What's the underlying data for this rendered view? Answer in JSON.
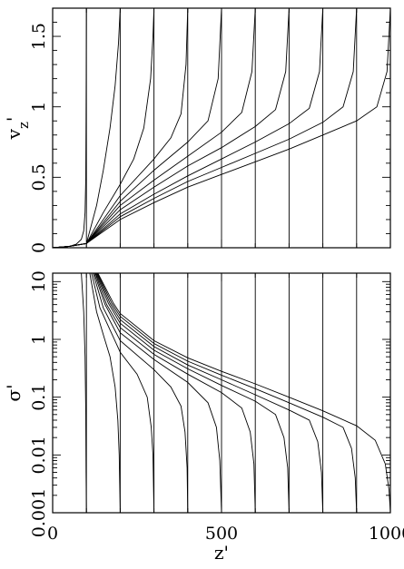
{
  "chart_data": [
    {
      "type": "line",
      "panel": "top",
      "ylabel": "v_z'",
      "xlim": [
        0,
        1000
      ],
      "ylim": [
        0,
        1.7
      ],
      "yticks": [
        0,
        0.5,
        1,
        1.5
      ],
      "ytick_labels": [
        "0",
        "0.5",
        "1",
        "1.5"
      ],
      "xticks": [
        0,
        500,
        1000
      ],
      "xtick_labels": [],
      "vertical_lines_x": [
        100,
        200,
        300,
        400,
        500,
        600,
        700,
        800,
        900,
        1000
      ],
      "series": [
        {
          "front": 100,
          "points": [
            [
              0,
              0
            ],
            [
              20,
              0.003
            ],
            [
              50,
              0.01
            ],
            [
              70,
              0.025
            ],
            [
              85,
              0.06
            ],
            [
              92,
              0.12
            ],
            [
              96,
              0.25
            ],
            [
              98,
              0.5
            ],
            [
              99,
              0.9
            ],
            [
              100,
              1.7
            ]
          ]
        },
        {
          "front": 200,
          "points": [
            [
              0,
              0
            ],
            [
              50,
              0.01
            ],
            [
              100,
              0.03
            ],
            [
              130,
              0.3
            ],
            [
              150,
              0.55
            ],
            [
              170,
              0.85
            ],
            [
              185,
              1.15
            ],
            [
              195,
              1.45
            ],
            [
              200,
              1.7
            ]
          ]
        },
        {
          "front": 300,
          "points": [
            [
              0,
              0
            ],
            [
              50,
              0.01
            ],
            [
              100,
              0.03
            ],
            [
              150,
              0.25
            ],
            [
              200,
              0.45
            ],
            [
              240,
              0.63
            ],
            [
              270,
              0.85
            ],
            [
              290,
              1.2
            ],
            [
              297,
              1.5
            ],
            [
              300,
              1.7
            ]
          ]
        },
        {
          "front": 400,
          "points": [
            [
              0,
              0
            ],
            [
              50,
              0.01
            ],
            [
              100,
              0.03
            ],
            [
              200,
              0.37
            ],
            [
              300,
              0.63
            ],
            [
              350,
              0.78
            ],
            [
              380,
              0.95
            ],
            [
              395,
              1.3
            ],
            [
              400,
              1.7
            ]
          ]
        },
        {
          "front": 500,
          "points": [
            [
              0,
              0
            ],
            [
              50,
              0.01
            ],
            [
              100,
              0.03
            ],
            [
              200,
              0.33
            ],
            [
              300,
              0.55
            ],
            [
              400,
              0.75
            ],
            [
              460,
              0.9
            ],
            [
              490,
              1.2
            ],
            [
              500,
              1.7
            ]
          ]
        },
        {
          "front": 600,
          "points": [
            [
              0,
              0
            ],
            [
              50,
              0.01
            ],
            [
              100,
              0.03
            ],
            [
              200,
              0.3
            ],
            [
              300,
              0.48
            ],
            [
              400,
              0.65
            ],
            [
              500,
              0.82
            ],
            [
              560,
              0.96
            ],
            [
              590,
              1.25
            ],
            [
              600,
              1.7
            ]
          ]
        },
        {
          "front": 700,
          "points": [
            [
              0,
              0
            ],
            [
              50,
              0.01
            ],
            [
              100,
              0.03
            ],
            [
              200,
              0.27
            ],
            [
              300,
              0.43
            ],
            [
              400,
              0.58
            ],
            [
              500,
              0.71
            ],
            [
              600,
              0.86
            ],
            [
              660,
              0.98
            ],
            [
              690,
              1.25
            ],
            [
              700,
              1.7
            ]
          ]
        },
        {
          "front": 800,
          "points": [
            [
              0,
              0
            ],
            [
              50,
              0.01
            ],
            [
              100,
              0.03
            ],
            [
              200,
              0.24
            ],
            [
              300,
              0.38
            ],
            [
              400,
              0.51
            ],
            [
              500,
              0.63
            ],
            [
              600,
              0.75
            ],
            [
              700,
              0.88
            ],
            [
              760,
              0.99
            ],
            [
              790,
              1.25
            ],
            [
              800,
              1.7
            ]
          ]
        },
        {
          "front": 900,
          "points": [
            [
              0,
              0
            ],
            [
              50,
              0.01
            ],
            [
              100,
              0.03
            ],
            [
              200,
              0.22
            ],
            [
              300,
              0.35
            ],
            [
              400,
              0.47
            ],
            [
              500,
              0.57
            ],
            [
              600,
              0.67
            ],
            [
              700,
              0.77
            ],
            [
              800,
              0.89
            ],
            [
              860,
              1.0
            ],
            [
              890,
              1.25
            ],
            [
              900,
              1.7
            ]
          ]
        },
        {
          "front": 1000,
          "points": [
            [
              0,
              0
            ],
            [
              50,
              0.01
            ],
            [
              100,
              0.03
            ],
            [
              200,
              0.2
            ],
            [
              300,
              0.32
            ],
            [
              400,
              0.43
            ],
            [
              500,
              0.52
            ],
            [
              600,
              0.61
            ],
            [
              700,
              0.7
            ],
            [
              800,
              0.8
            ],
            [
              900,
              0.9
            ],
            [
              960,
              1.0
            ],
            [
              990,
              1.25
            ],
            [
              1000,
              1.7
            ]
          ]
        }
      ]
    },
    {
      "type": "line",
      "panel": "bottom",
      "xlabel": "z'",
      "ylabel": "σ'",
      "xlim": [
        0,
        1000
      ],
      "ylim": [
        0.001,
        14
      ],
      "yscale": "log",
      "yticks": [
        0.001,
        0.01,
        0.1,
        1,
        10
      ],
      "ytick_labels": [
        "0.001",
        "0.01",
        "0.1",
        "1",
        "10"
      ],
      "xticks": [
        0,
        500,
        1000
      ],
      "xtick_labels": [
        "0",
        "500",
        "1000"
      ],
      "vertical_lines_x": [
        100,
        200,
        300,
        400,
        500,
        600,
        700,
        800,
        900,
        1000
      ],
      "series": [
        {
          "front": 100,
          "points": [
            [
              85,
              14
            ],
            [
              92,
              3
            ],
            [
              96,
              0.5
            ],
            [
              98,
              0.05
            ],
            [
              99,
              0.005
            ],
            [
              100,
              0.001
            ]
          ]
        },
        {
          "front": 200,
          "points": [
            [
              110,
              14
            ],
            [
              130,
              3
            ],
            [
              150,
              1.2
            ],
            [
              170,
              0.5
            ],
            [
              185,
              0.15
            ],
            [
              193,
              0.04
            ],
            [
              197,
              0.01
            ],
            [
              200,
              0.001
            ]
          ]
        },
        {
          "front": 300,
          "points": [
            [
              115,
              14
            ],
            [
              140,
              3.5
            ],
            [
              200,
              0.6
            ],
            [
              250,
              0.25
            ],
            [
              280,
              0.1
            ],
            [
              292,
              0.03
            ],
            [
              297,
              0.01
            ],
            [
              300,
              0.001
            ]
          ]
        },
        {
          "front": 400,
          "points": [
            [
              120,
              14
            ],
            [
              150,
              3.5
            ],
            [
              200,
              0.95
            ],
            [
              300,
              0.3
            ],
            [
              350,
              0.15
            ],
            [
              380,
              0.07
            ],
            [
              392,
              0.025
            ],
            [
              398,
              0.006
            ],
            [
              400,
              0.001
            ]
          ]
        },
        {
          "front": 500,
          "points": [
            [
              123,
              14
            ],
            [
              155,
              4
            ],
            [
              200,
              1.3
            ],
            [
              300,
              0.45
            ],
            [
              400,
              0.18
            ],
            [
              460,
              0.08
            ],
            [
              485,
              0.03
            ],
            [
              495,
              0.008
            ],
            [
              500,
              0.001
            ]
          ]
        },
        {
          "front": 600,
          "points": [
            [
              126,
              14
            ],
            [
              160,
              4
            ],
            [
              200,
              1.6
            ],
            [
              300,
              0.55
            ],
            [
              400,
              0.25
            ],
            [
              500,
              0.12
            ],
            [
              560,
              0.065
            ],
            [
              585,
              0.025
            ],
            [
              596,
              0.007
            ],
            [
              600,
              0.001
            ]
          ]
        },
        {
          "front": 700,
          "points": [
            [
              128,
              14
            ],
            [
              165,
              4.2
            ],
            [
              200,
              1.9
            ],
            [
              300,
              0.65
            ],
            [
              400,
              0.31
            ],
            [
              500,
              0.16
            ],
            [
              600,
              0.085
            ],
            [
              660,
              0.05
            ],
            [
              685,
              0.02
            ],
            [
              696,
              0.006
            ],
            [
              700,
              0.001
            ]
          ]
        },
        {
          "front": 800,
          "points": [
            [
              130,
              14
            ],
            [
              170,
              4.2
            ],
            [
              200,
              2.2
            ],
            [
              300,
              0.75
            ],
            [
              400,
              0.36
            ],
            [
              500,
              0.2
            ],
            [
              600,
              0.11
            ],
            [
              700,
              0.06
            ],
            [
              760,
              0.04
            ],
            [
              785,
              0.017
            ],
            [
              796,
              0.005
            ],
            [
              800,
              0.001
            ]
          ]
        },
        {
          "front": 900,
          "points": [
            [
              132,
              14
            ],
            [
              175,
              4.2
            ],
            [
              200,
              2.5
            ],
            [
              300,
              0.85
            ],
            [
              400,
              0.42
            ],
            [
              500,
              0.24
            ],
            [
              600,
              0.14
            ],
            [
              700,
              0.08
            ],
            [
              800,
              0.045
            ],
            [
              860,
              0.03
            ],
            [
              885,
              0.013
            ],
            [
              896,
              0.004
            ],
            [
              900,
              0.001
            ]
          ]
        },
        {
          "front": 1000,
          "points": [
            [
              134,
              14
            ],
            [
              180,
              4.2
            ],
            [
              200,
              2.8
            ],
            [
              300,
              0.95
            ],
            [
              400,
              0.48
            ],
            [
              500,
              0.28
            ],
            [
              600,
              0.17
            ],
            [
              700,
              0.1
            ],
            [
              800,
              0.058
            ],
            [
              900,
              0.032
            ],
            [
              955,
              0.018
            ],
            [
              985,
              0.007
            ],
            [
              996,
              0.0025
            ],
            [
              1000,
              0.001
            ]
          ]
        }
      ]
    }
  ]
}
